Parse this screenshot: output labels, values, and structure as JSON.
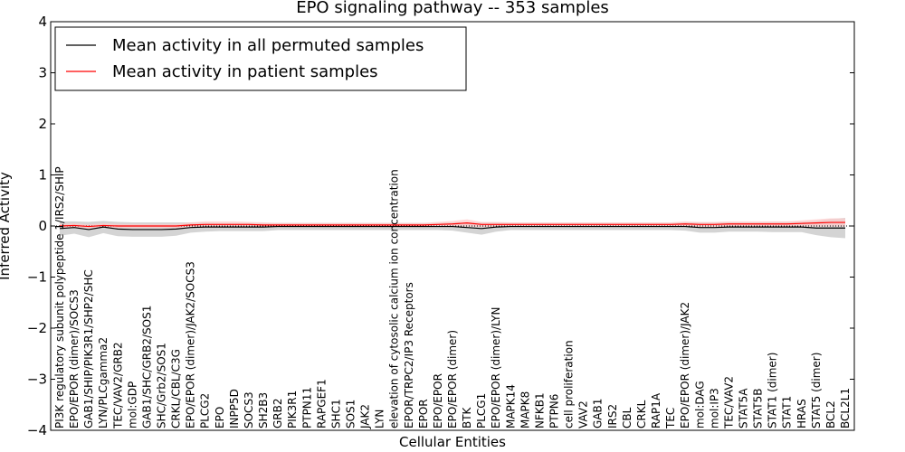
{
  "chart_data": {
    "type": "line",
    "title": "EPO signaling pathway -- 353 samples",
    "xlabel": "Cellular Entities",
    "ylabel": "Inferred Activity",
    "ylim": [
      -4,
      4
    ],
    "yticks": [
      -4,
      -3,
      -2,
      -1,
      0,
      1,
      2,
      3,
      4
    ],
    "ytick_labels": [
      "−4",
      "−3",
      "−2",
      "−1",
      "0",
      "1",
      "2",
      "3",
      "4"
    ],
    "grid": false,
    "legend_position": "upper-left",
    "categories": [
      "PI3K regulatory subunit polypeptide 1/IRS2/SHIP",
      "EPO/EPOR (dimer)/SOCS3",
      "GAB1/SHIP/PIK3R1/SHP2/SHC",
      "LYN/PLCgamma2",
      "TEC/VAV2/GRB2",
      "mol:GDP",
      "GAB1/SHC/GRB2/SOS1",
      "SHC/Grb2/SOS1",
      "CRKL/CBL/C3G",
      "EPO/EPOR (dimer)/JAK2/SOCS3",
      "PLCG2",
      "EPO",
      "INPP5D",
      "SOCS3",
      "SH2B3",
      "GRB2",
      "PIK3R1",
      "PTPN11",
      "RAPGEF1",
      "SHC1",
      "SOS1",
      "JAK2",
      "LYN",
      "elevation of cytosolic calcium ion concentration",
      "EPOR/TRPC2/IP3 Receptors",
      "EPOR",
      "EPO/EPOR",
      "EPO/EPOR (dimer)",
      "BTK",
      "PLCG1",
      "EPO/EPOR (dimer)/LYN",
      "MAPK14",
      "MAPK8",
      "NFKB1",
      "PTPN6",
      "cell proliferation",
      "VAV2",
      "GAB1",
      "IRS2",
      "CBL",
      "CRKL",
      "RAP1A",
      "TEC",
      "EPO/EPOR (dimer)/JAK2",
      "mol:DAG",
      "mol:IP3",
      "TEC/VAV2",
      "STAT5A",
      "STAT5B",
      "STAT1 (dimer)",
      "STAT1",
      "HRAS",
      "STAT5 (dimer)",
      "BCL2",
      "BCL2L1"
    ],
    "series": [
      {
        "name": "Mean activity in all permuted samples",
        "color": "#000000",
        "values": [
          -0.05,
          -0.03,
          -0.07,
          -0.02,
          -0.06,
          -0.07,
          -0.07,
          -0.07,
          -0.06,
          -0.03,
          -0.02,
          -0.02,
          -0.02,
          -0.02,
          -0.02,
          -0.01,
          -0.01,
          -0.01,
          -0.01,
          -0.01,
          -0.01,
          -0.01,
          -0.01,
          -0.01,
          -0.01,
          -0.01,
          -0.01,
          -0.01,
          -0.03,
          -0.05,
          -0.02,
          -0.01,
          -0.01,
          -0.01,
          -0.01,
          -0.01,
          -0.01,
          -0.01,
          -0.01,
          -0.01,
          -0.01,
          -0.01,
          -0.01,
          -0.01,
          -0.03,
          -0.03,
          -0.02,
          -0.02,
          -0.02,
          -0.02,
          -0.02,
          -0.02,
          -0.04,
          -0.04,
          -0.04
        ],
        "band": [
          0.14,
          0.12,
          0.15,
          0.12,
          0.14,
          0.14,
          0.14,
          0.14,
          0.13,
          0.1,
          0.09,
          0.08,
          0.08,
          0.08,
          0.08,
          0.07,
          0.07,
          0.07,
          0.07,
          0.07,
          0.07,
          0.07,
          0.07,
          0.07,
          0.07,
          0.07,
          0.07,
          0.08,
          0.1,
          0.12,
          0.09,
          0.07,
          0.07,
          0.07,
          0.07,
          0.07,
          0.07,
          0.07,
          0.07,
          0.07,
          0.07,
          0.07,
          0.07,
          0.08,
          0.1,
          0.1,
          0.09,
          0.09,
          0.09,
          0.1,
          0.1,
          0.1,
          0.14,
          0.18,
          0.2
        ]
      },
      {
        "name": "Mean activity in patient samples",
        "color": "#ff0000",
        "values": [
          0.0,
          0.01,
          -0.01,
          0.01,
          0.0,
          0.0,
          0.0,
          0.0,
          0.0,
          0.02,
          0.03,
          0.03,
          0.03,
          0.03,
          0.02,
          0.02,
          0.02,
          0.02,
          0.02,
          0.02,
          0.02,
          0.02,
          0.02,
          0.02,
          0.02,
          0.02,
          0.03,
          0.04,
          0.06,
          0.03,
          0.03,
          0.03,
          0.03,
          0.03,
          0.03,
          0.03,
          0.03,
          0.03,
          0.03,
          0.03,
          0.03,
          0.03,
          0.03,
          0.04,
          0.03,
          0.03,
          0.04,
          0.04,
          0.04,
          0.04,
          0.04,
          0.05,
          0.06,
          0.07,
          0.07
        ],
        "band": [
          0.04,
          0.04,
          0.04,
          0.04,
          0.04,
          0.04,
          0.04,
          0.04,
          0.04,
          0.05,
          0.06,
          0.06,
          0.06,
          0.05,
          0.05,
          0.04,
          0.04,
          0.04,
          0.04,
          0.04,
          0.04,
          0.04,
          0.04,
          0.04,
          0.04,
          0.04,
          0.05,
          0.06,
          0.07,
          0.05,
          0.05,
          0.04,
          0.04,
          0.04,
          0.04,
          0.04,
          0.04,
          0.04,
          0.04,
          0.04,
          0.04,
          0.04,
          0.04,
          0.05,
          0.05,
          0.05,
          0.05,
          0.05,
          0.05,
          0.05,
          0.05,
          0.06,
          0.07,
          0.08,
          0.08
        ]
      }
    ],
    "zero_reference_line": "dotted"
  }
}
